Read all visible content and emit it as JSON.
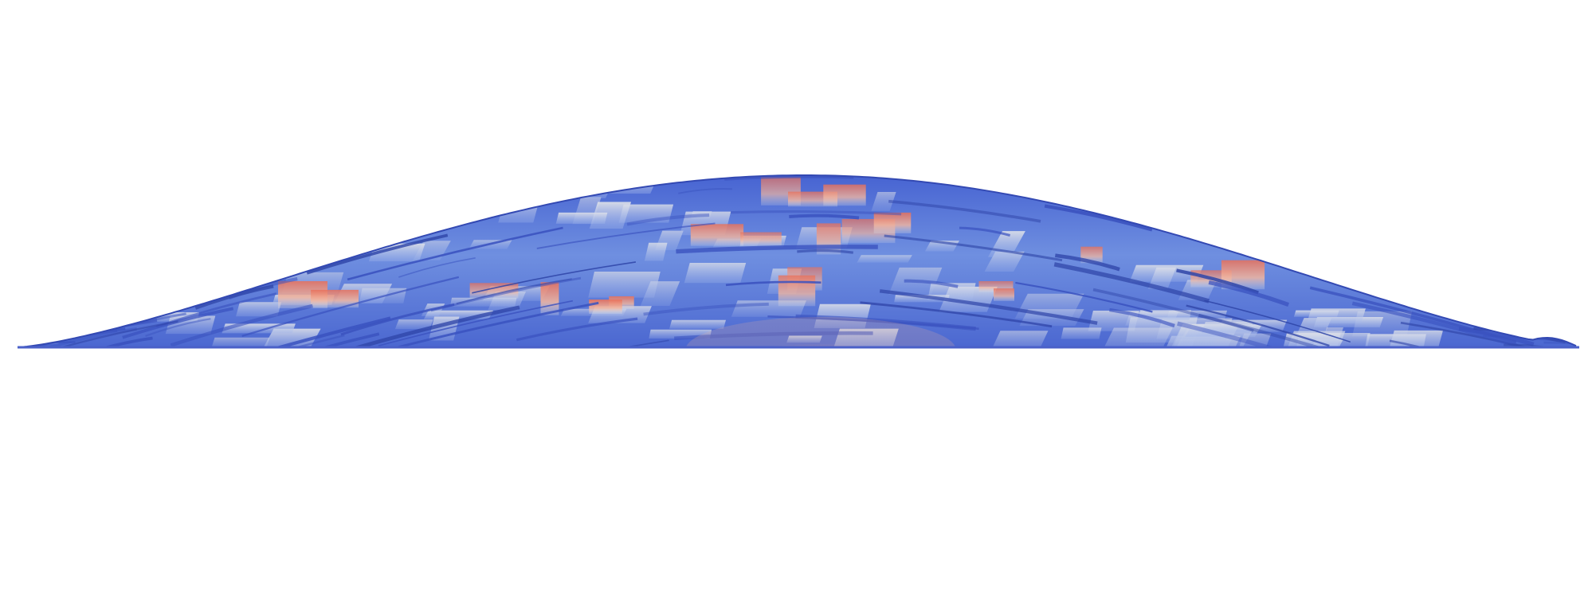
{
  "scene": {
    "background_color": "#ffffff",
    "colormap": {
      "name": "cool-to-warm",
      "low_color": "#3b4cc0",
      "mid_color": "#dddddd",
      "high_color": "#b40426"
    },
    "surface_description_icon": "mound-surface"
  }
}
